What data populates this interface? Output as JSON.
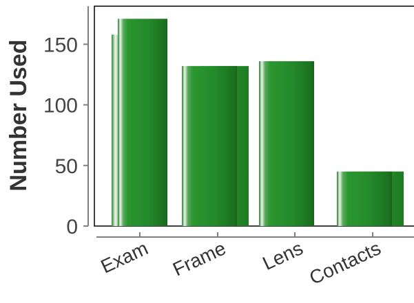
{
  "chart_data": {
    "type": "bar",
    "categories": [
      "Exam",
      "Frame",
      "Lens",
      "Contacts"
    ],
    "series": [
      {
        "values": [
          158,
          132,
          128,
          45
        ]
      },
      {
        "values": [
          171,
          132,
          136,
          45
        ]
      }
    ],
    "xlabel": "",
    "ylabel": "Number Used",
    "ylim": [
      0,
      180
    ],
    "yticks": [
      0,
      50,
      100,
      150
    ],
    "grid": false,
    "legend": "none",
    "colors": {
      "bar_dark": "#1e7a22",
      "bar_mid": "#2a9630",
      "bar_highlight": "#f4f8f2",
      "axis": "#7f7f7f",
      "frame": "#000000"
    }
  }
}
